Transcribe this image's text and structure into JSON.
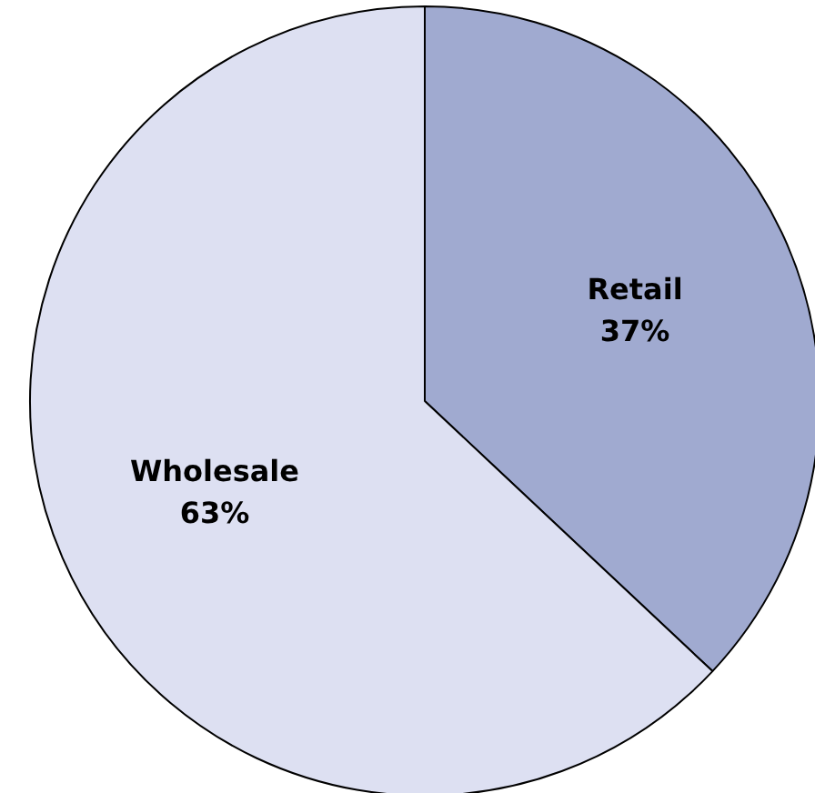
{
  "chart_data": {
    "type": "pie",
    "categories": [
      "Retail",
      "Wholesale"
    ],
    "values": [
      37,
      63
    ],
    "colors": [
      "#a0aad0",
      "#dde0f2"
    ],
    "data_labels": true,
    "value_labels": [
      "37%",
      "63%"
    ]
  }
}
